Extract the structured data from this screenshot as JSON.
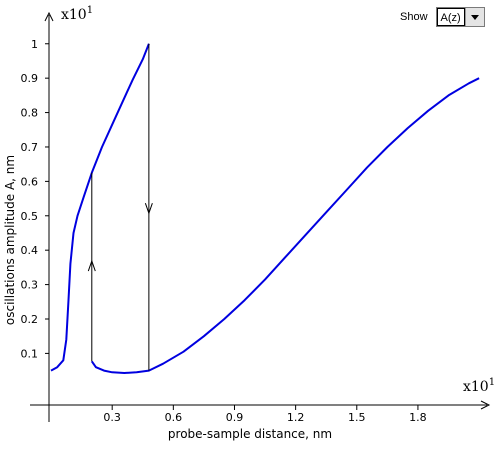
{
  "controls": {
    "show_label": "Show",
    "show_value": "A(z)"
  },
  "chart_data": {
    "type": "line",
    "xlabel": "probe-sample distance, nm",
    "ylabel": "oscillations amplitude A, nm",
    "x_scale": {
      "base": "x10",
      "exponent": "1"
    },
    "y_scale": {
      "base": "x10",
      "exponent": "1"
    },
    "x_ticks": [
      "0.3",
      "0.6",
      "0.9",
      "1.2",
      "1.5",
      "1.8"
    ],
    "y_ticks": [
      "0.1",
      "0.2",
      "0.3",
      "0.4",
      "0.5",
      "0.6",
      "0.7",
      "0.8",
      "0.9",
      "1"
    ],
    "xlim": [
      -0.01,
      2.08
    ],
    "ylim": [
      -0.05,
      1.04
    ],
    "grid": false,
    "series": [
      {
        "color": "#0000e0",
        "points": [
          [
            0.0,
            0.05
          ],
          [
            0.03,
            0.06
          ],
          [
            0.06,
            0.08
          ],
          [
            0.075,
            0.14
          ],
          [
            0.085,
            0.25
          ],
          [
            0.095,
            0.36
          ],
          [
            0.11,
            0.45
          ],
          [
            0.13,
            0.5
          ],
          [
            0.16,
            0.555
          ],
          [
            0.2,
            0.625
          ],
          [
            0.25,
            0.7
          ],
          [
            0.3,
            0.765
          ],
          [
            0.35,
            0.83
          ],
          [
            0.4,
            0.895
          ],
          [
            0.45,
            0.955
          ],
          [
            0.48,
            1.0
          ]
        ]
      },
      {
        "color": "#0000e0",
        "points": [
          [
            0.2,
            0.077
          ],
          [
            0.22,
            0.06
          ],
          [
            0.26,
            0.05
          ],
          [
            0.3,
            0.045
          ],
          [
            0.36,
            0.043
          ],
          [
            0.42,
            0.045
          ],
          [
            0.48,
            0.05
          ],
          [
            0.55,
            0.07
          ],
          [
            0.65,
            0.105
          ],
          [
            0.75,
            0.15
          ],
          [
            0.85,
            0.2
          ],
          [
            0.95,
            0.255
          ],
          [
            1.05,
            0.315
          ],
          [
            1.15,
            0.38
          ],
          [
            1.25,
            0.445
          ],
          [
            1.35,
            0.51
          ],
          [
            1.45,
            0.575
          ],
          [
            1.55,
            0.64
          ],
          [
            1.65,
            0.7
          ],
          [
            1.75,
            0.755
          ],
          [
            1.85,
            0.805
          ],
          [
            1.95,
            0.85
          ],
          [
            2.05,
            0.885
          ],
          [
            2.1,
            0.9
          ]
        ]
      }
    ],
    "transitions": [
      {
        "x": 0.2,
        "from": 0.077,
        "to": 0.625,
        "direction": "up"
      },
      {
        "x": 0.48,
        "from": 1.0,
        "to": 0.05,
        "direction": "down"
      }
    ]
  }
}
